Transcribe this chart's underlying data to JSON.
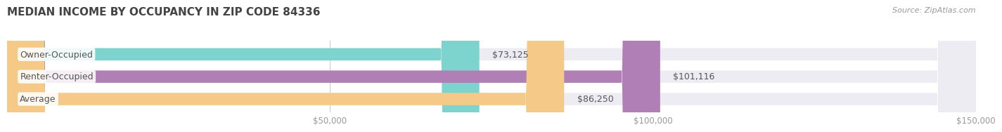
{
  "title": "MEDIAN INCOME BY OCCUPANCY IN ZIP CODE 84336",
  "source": "Source: ZipAtlas.com",
  "categories": [
    "Owner-Occupied",
    "Renter-Occupied",
    "Average"
  ],
  "values": [
    73125,
    101116,
    86250
  ],
  "bar_colors": [
    "#7dd4ce",
    "#b07fb5",
    "#f5c987"
  ],
  "bar_bg_color": "#eeecf3",
  "value_labels": [
    "$73,125",
    "$101,116",
    "$86,250"
  ],
  "xlim": [
    0,
    150000
  ],
  "xticks": [
    0,
    50000,
    100000,
    150000
  ],
  "xtick_labels": [
    "",
    "$50,000",
    "$100,000",
    "$150,000"
  ],
  "bg_color": "#ffffff",
  "title_fontsize": 11,
  "label_fontsize": 9,
  "tick_fontsize": 8.5,
  "source_fontsize": 8,
  "bar_height": 0.55,
  "title_color": "#444444",
  "label_color": "#555555",
  "tick_color": "#999999",
  "source_color": "#999999",
  "value_label_color": "#555555"
}
